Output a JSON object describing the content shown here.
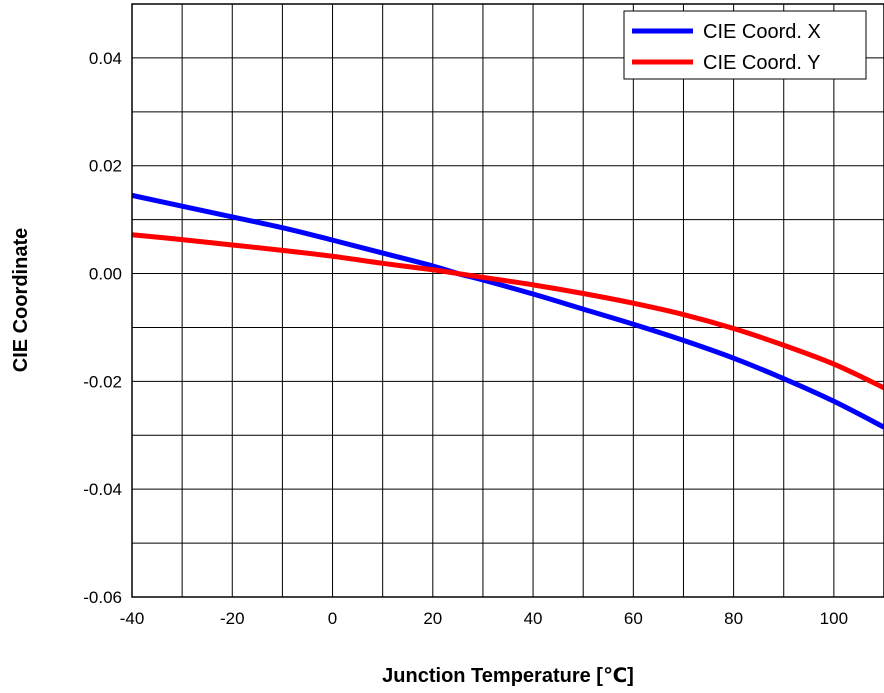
{
  "chart_data": {
    "type": "line",
    "title": "",
    "xlabel": "Junction Temperature [℃]",
    "ylabel": "CIE Coordinate",
    "xlim": [
      -40,
      110
    ],
    "ylim": [
      -0.06,
      0.05
    ],
    "xticks": [
      -40,
      -20,
      0,
      20,
      40,
      60,
      80,
      100
    ],
    "xtick_labels": [
      "-40",
      "-20",
      "0",
      "20",
      "40",
      "60",
      "80",
      "100"
    ],
    "yticks": [
      -0.06,
      -0.04,
      -0.02,
      0.0,
      0.02,
      0.04
    ],
    "ytick_labels": [
      "-0.06",
      "-0.04",
      "-0.02",
      "0.00",
      "0.02",
      "0.04"
    ],
    "x_gridlines": [
      -40,
      -30,
      -20,
      -10,
      0,
      10,
      20,
      30,
      40,
      50,
      60,
      70,
      80,
      90,
      100,
      110
    ],
    "y_gridlines": [
      -0.06,
      -0.05,
      -0.04,
      -0.03,
      -0.02,
      -0.01,
      0.0,
      0.01,
      0.02,
      0.03,
      0.04,
      0.05
    ],
    "grid": true,
    "legend_position": "top-right",
    "series": [
      {
        "name": "CIE Coord. X",
        "color": "#0000ff",
        "x": [
          -40,
          -30,
          -20,
          -10,
          0,
          10,
          20,
          25,
          30,
          40,
          50,
          60,
          70,
          80,
          90,
          100,
          110
        ],
        "y": [
          0.0145,
          0.0125,
          0.0105,
          0.0085,
          0.0062,
          0.0038,
          0.0014,
          0.0,
          -0.0012,
          -0.0038,
          -0.0066,
          -0.0094,
          -0.0124,
          -0.0157,
          -0.0195,
          -0.0237,
          -0.0285
        ]
      },
      {
        "name": "CIE Coord. Y",
        "color": "#ff0000",
        "x": [
          -40,
          -30,
          -20,
          -10,
          0,
          10,
          20,
          25,
          30,
          40,
          50,
          60,
          70,
          80,
          90,
          100,
          110
        ],
        "y": [
          0.0072,
          0.0063,
          0.0053,
          0.0043,
          0.0032,
          0.0019,
          0.0007,
          0.0,
          -0.0007,
          -0.0021,
          -0.0037,
          -0.0055,
          -0.0076,
          -0.0102,
          -0.0133,
          -0.0168,
          -0.0212
        ]
      }
    ]
  }
}
